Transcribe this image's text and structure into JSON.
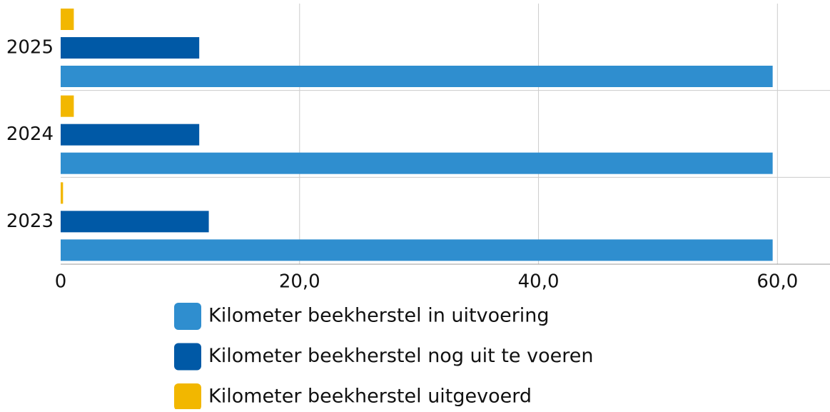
{
  "chart_data": {
    "type": "hbar",
    "categories": [
      "2025",
      "2024",
      "2023"
    ],
    "series": [
      {
        "name": "Kilometer beekherstel in uitvoering",
        "color": "#2f8ecf",
        "values": [
          59.6,
          59.6,
          59.6
        ]
      },
      {
        "name": "Kilometer beekherstel nog uit te voeren",
        "color": "#0059a6",
        "values": [
          11.6,
          11.6,
          12.4
        ]
      },
      {
        "name": "Kilometer beekherstel uitgevoerd",
        "color": "#f2b700",
        "values": [
          1.1,
          1.1,
          0.2
        ]
      }
    ],
    "xlim": [
      0,
      64.4
    ],
    "xticks": [
      0,
      {
        "value": 20,
        "label": "20,0"
      },
      {
        "value": 40,
        "label": "40,0"
      },
      {
        "value": 60,
        "label": "60,0"
      }
    ],
    "grid": true,
    "legend": "bottom"
  }
}
